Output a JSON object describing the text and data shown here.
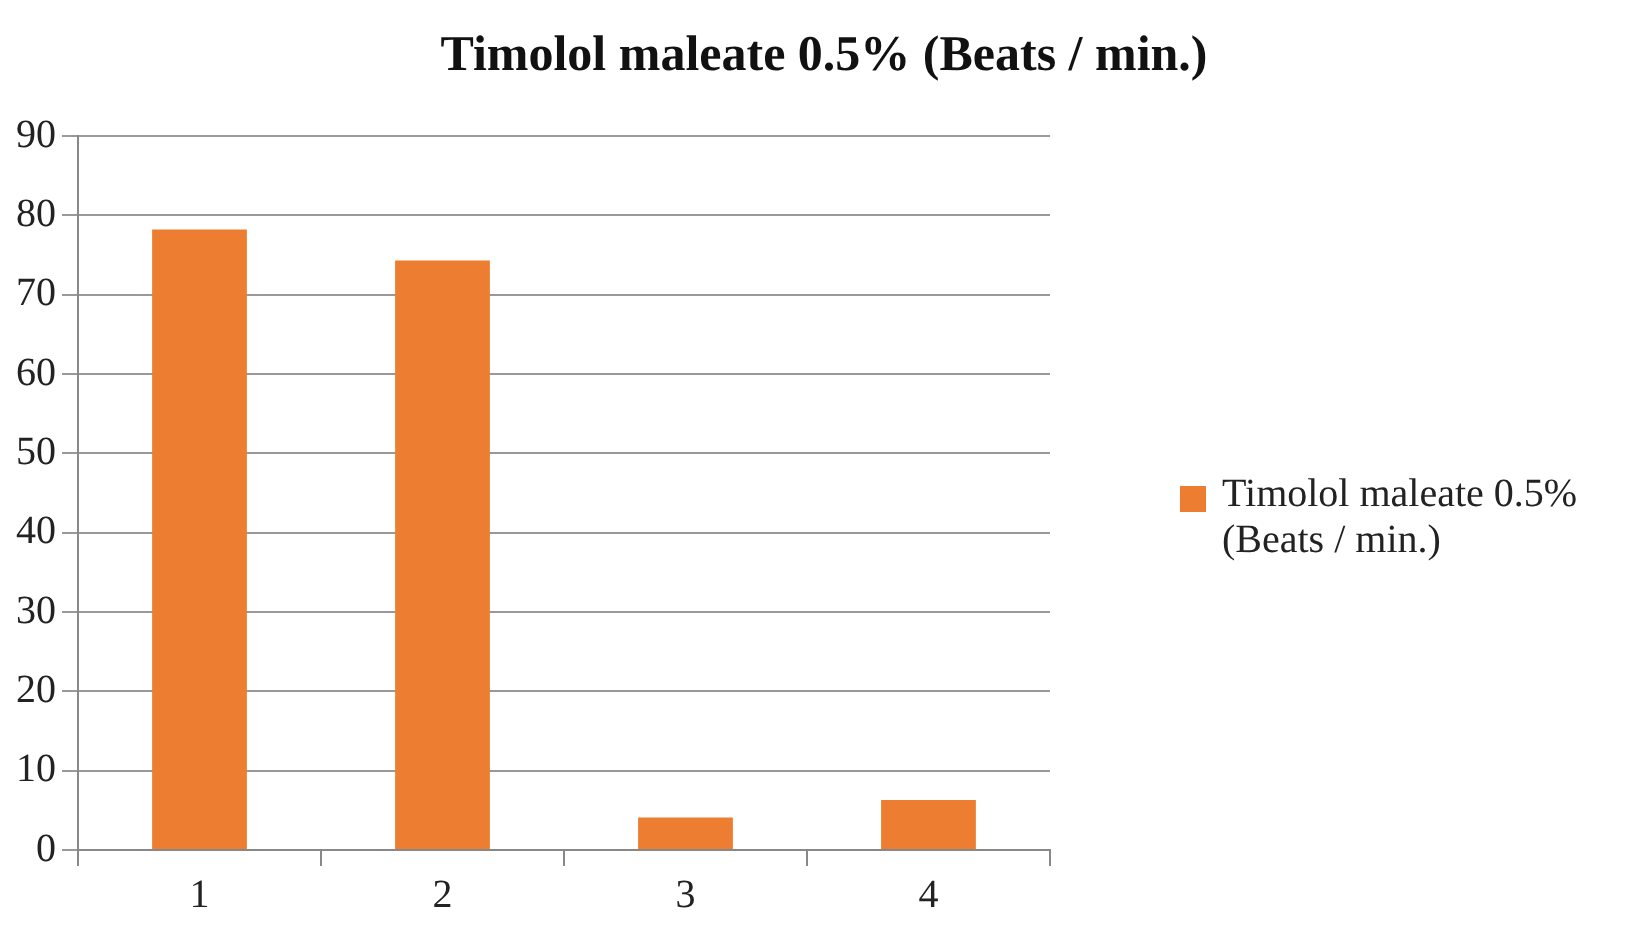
{
  "chart_data": {
    "type": "bar",
    "title": "Timolol maleate 0.5% (Beats / min.)",
    "categories": [
      "1",
      "2",
      "3",
      "4"
    ],
    "series": [
      {
        "name": "Timolol maleate 0.5% (Beats / min.)",
        "color": "#ed7d31",
        "values": [
          78.2,
          74.3,
          4.1,
          6.3
        ]
      }
    ],
    "ylim": [
      0,
      90
    ],
    "yticks": [
      0,
      10,
      20,
      30,
      40,
      50,
      60,
      70,
      80,
      90
    ],
    "grid": "y",
    "legend": "right"
  }
}
